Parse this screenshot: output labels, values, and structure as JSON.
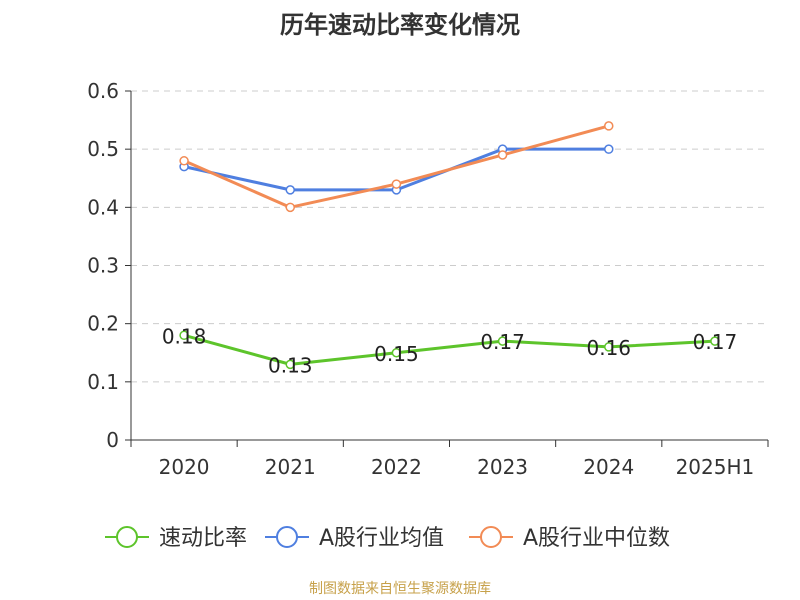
{
  "chart_data": {
    "type": "line",
    "title": "历年速动比率变化情况",
    "categories": [
      "2020",
      "2021",
      "2022",
      "2023",
      "2024",
      "2025H1"
    ],
    "y_ticks": [
      "0",
      "0.1",
      "0.2",
      "0.3",
      "0.4",
      "0.5",
      "0.6"
    ],
    "ylim": [
      0,
      0.6
    ],
    "grid": true,
    "legend_position": "bottom",
    "series": [
      {
        "name": "速动比率",
        "color": "#5dc42b",
        "values": [
          0.18,
          0.13,
          0.15,
          0.17,
          0.16,
          0.17
        ],
        "labels": [
          "0.18",
          "0.13",
          "0.15",
          "0.17",
          "0.16",
          "0.17"
        ]
      },
      {
        "name": "A股行业均值",
        "color": "#4f7fe0",
        "values": [
          0.47,
          0.43,
          0.43,
          0.5,
          0.5,
          null
        ]
      },
      {
        "name": "A股行业中位数",
        "color": "#f28b55",
        "values": [
          0.48,
          0.4,
          0.44,
          0.49,
          0.54,
          null
        ]
      }
    ]
  },
  "source_note": "制图数据来自恒生聚源数据库",
  "colors": {
    "title": "#333333",
    "axis": "#333333",
    "grid": "#cccccc",
    "source": "#c7a14a"
  }
}
